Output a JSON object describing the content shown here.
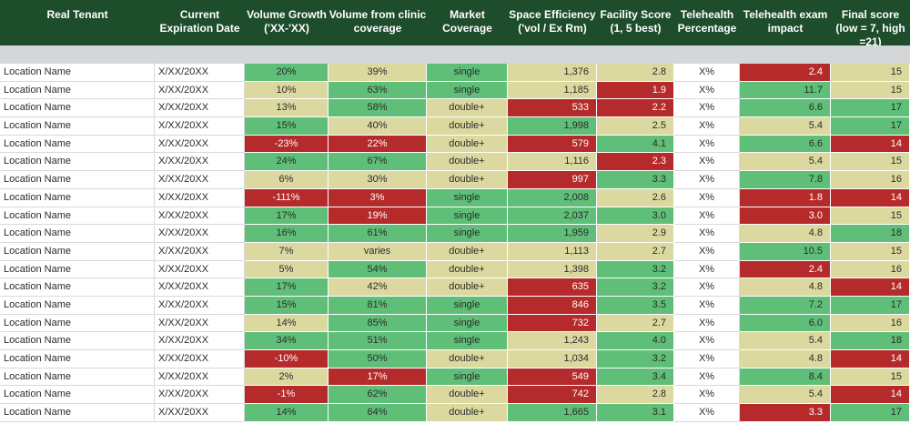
{
  "columns": [
    "Real Tenant",
    "Current Expiration Date",
    "Volume Growth ('XX-'XX)",
    "Volume from clinic coverage",
    "Market Coverage",
    "Space Efficiency ('vol / Ex Rm)",
    "Facility Score (1, 5 best)",
    "Telehealth Percentage",
    "Telehealth exam impact",
    "Final score (low = 7, high =21)"
  ],
  "colors": {
    "header_bg": "#1e4d2b",
    "band": "#d4d6d8",
    "good": "#5fbf78",
    "neutral": "#dcd9a0",
    "bad": "#b52a2a"
  },
  "rows": [
    {
      "loc": "Location Name",
      "exp": "X/XX/20XX",
      "vg": "20%",
      "vg_c": "g",
      "vc": "39%",
      "vc_c": "y",
      "mc": "single",
      "mc_c": "g",
      "se": "1,376",
      "se_c": "y",
      "fs": "2.8",
      "fs_c": "y",
      "tp": "X%",
      "ti": "2.4",
      "ti_c": "r",
      "score": "15",
      "score_c": "y"
    },
    {
      "loc": "Location Name",
      "exp": "X/XX/20XX",
      "vg": "10%",
      "vg_c": "y",
      "vc": "63%",
      "vc_c": "g",
      "mc": "single",
      "mc_c": "g",
      "se": "1,185",
      "se_c": "y",
      "fs": "1.9",
      "fs_c": "r",
      "tp": "X%",
      "ti": "11.7",
      "ti_c": "g",
      "score": "15",
      "score_c": "y"
    },
    {
      "loc": "Location Name",
      "exp": "X/XX/20XX",
      "vg": "13%",
      "vg_c": "y",
      "vc": "58%",
      "vc_c": "g",
      "mc": "double+",
      "mc_c": "y",
      "se": "533",
      "se_c": "r",
      "fs": "2.2",
      "fs_c": "r",
      "tp": "X%",
      "ti": "6.6",
      "ti_c": "g",
      "score": "17",
      "score_c": "g"
    },
    {
      "loc": "Location Name",
      "exp": "X/XX/20XX",
      "vg": "15%",
      "vg_c": "g",
      "vc": "40%",
      "vc_c": "y",
      "mc": "double+",
      "mc_c": "y",
      "se": "1,998",
      "se_c": "g",
      "fs": "2.5",
      "fs_c": "y",
      "tp": "X%",
      "ti": "5.4",
      "ti_c": "y",
      "score": "17",
      "score_c": "g"
    },
    {
      "loc": "Location Name",
      "exp": "X/XX/20XX",
      "vg": "-23%",
      "vg_c": "r",
      "vc": "22%",
      "vc_c": "r",
      "mc": "double+",
      "mc_c": "y",
      "se": "579",
      "se_c": "r",
      "fs": "4.1",
      "fs_c": "g",
      "tp": "X%",
      "ti": "6.6",
      "ti_c": "g",
      "score": "14",
      "score_c": "r"
    },
    {
      "loc": "Location Name",
      "exp": "X/XX/20XX",
      "vg": "24%",
      "vg_c": "g",
      "vc": "67%",
      "vc_c": "g",
      "mc": "double+",
      "mc_c": "y",
      "se": "1,116",
      "se_c": "y",
      "fs": "2.3",
      "fs_c": "r",
      "tp": "X%",
      "ti": "5.4",
      "ti_c": "y",
      "score": "15",
      "score_c": "y"
    },
    {
      "loc": "Location Name",
      "exp": "X/XX/20XX",
      "vg": "6%",
      "vg_c": "y",
      "vc": "30%",
      "vc_c": "y",
      "mc": "double+",
      "mc_c": "y",
      "se": "997",
      "se_c": "r",
      "fs": "3.3",
      "fs_c": "g",
      "tp": "X%",
      "ti": "7.8",
      "ti_c": "g",
      "score": "16",
      "score_c": "y"
    },
    {
      "loc": "Location Name",
      "exp": "X/XX/20XX",
      "vg": "-111%",
      "vg_c": "r",
      "vc": "3%",
      "vc_c": "r",
      "mc": "single",
      "mc_c": "g",
      "se": "2,008",
      "se_c": "g",
      "fs": "2.6",
      "fs_c": "y",
      "tp": "X%",
      "ti": "1.8",
      "ti_c": "r",
      "score": "14",
      "score_c": "r"
    },
    {
      "loc": "Location Name",
      "exp": "X/XX/20XX",
      "vg": "17%",
      "vg_c": "g",
      "vc": "19%",
      "vc_c": "r",
      "mc": "single",
      "mc_c": "g",
      "se": "2,037",
      "se_c": "g",
      "fs": "3.0",
      "fs_c": "g",
      "tp": "X%",
      "ti": "3.0",
      "ti_c": "r",
      "score": "15",
      "score_c": "y"
    },
    {
      "loc": "Location Name",
      "exp": "X/XX/20XX",
      "vg": "16%",
      "vg_c": "g",
      "vc": "61%",
      "vc_c": "g",
      "mc": "single",
      "mc_c": "g",
      "se": "1,959",
      "se_c": "g",
      "fs": "2.9",
      "fs_c": "y",
      "tp": "X%",
      "ti": "4.8",
      "ti_c": "y",
      "score": "18",
      "score_c": "g"
    },
    {
      "loc": "Location Name",
      "exp": "X/XX/20XX",
      "vg": "7%",
      "vg_c": "y",
      "vc": "varies",
      "vc_c": "y",
      "mc": "double+",
      "mc_c": "y",
      "se": "1,113",
      "se_c": "y",
      "fs": "2.7",
      "fs_c": "y",
      "tp": "X%",
      "ti": "10.5",
      "ti_c": "g",
      "score": "15",
      "score_c": "y"
    },
    {
      "loc": "Location Name",
      "exp": "X/XX/20XX",
      "vg": "5%",
      "vg_c": "y",
      "vc": "54%",
      "vc_c": "g",
      "mc": "double+",
      "mc_c": "y",
      "se": "1,398",
      "se_c": "y",
      "fs": "3.2",
      "fs_c": "g",
      "tp": "X%",
      "ti": "2.4",
      "ti_c": "r",
      "score": "16",
      "score_c": "y"
    },
    {
      "loc": "Location Name",
      "exp": "X/XX/20XX",
      "vg": "17%",
      "vg_c": "g",
      "vc": "42%",
      "vc_c": "y",
      "mc": "double+",
      "mc_c": "y",
      "se": "635",
      "se_c": "r",
      "fs": "3.2",
      "fs_c": "g",
      "tp": "X%",
      "ti": "4.8",
      "ti_c": "y",
      "score": "14",
      "score_c": "r"
    },
    {
      "loc": "Location Name",
      "exp": "X/XX/20XX",
      "vg": "15%",
      "vg_c": "g",
      "vc": "81%",
      "vc_c": "g",
      "mc": "single",
      "mc_c": "g",
      "se": "846",
      "se_c": "r",
      "fs": "3.5",
      "fs_c": "g",
      "tp": "X%",
      "ti": "7.2",
      "ti_c": "g",
      "score": "17",
      "score_c": "g"
    },
    {
      "loc": "Location Name",
      "exp": "X/XX/20XX",
      "vg": "14%",
      "vg_c": "y",
      "vc": "85%",
      "vc_c": "g",
      "mc": "single",
      "mc_c": "g",
      "se": "732",
      "se_c": "r",
      "fs": "2.7",
      "fs_c": "y",
      "tp": "X%",
      "ti": "6.0",
      "ti_c": "g",
      "score": "16",
      "score_c": "y"
    },
    {
      "loc": "Location Name",
      "exp": "X/XX/20XX",
      "vg": "34%",
      "vg_c": "g",
      "vc": "51%",
      "vc_c": "g",
      "mc": "single",
      "mc_c": "g",
      "se": "1,243",
      "se_c": "y",
      "fs": "4.0",
      "fs_c": "g",
      "tp": "X%",
      "ti": "5.4",
      "ti_c": "y",
      "score": "18",
      "score_c": "g"
    },
    {
      "loc": "Location Name",
      "exp": "X/XX/20XX",
      "vg": "-10%",
      "vg_c": "r",
      "vc": "50%",
      "vc_c": "g",
      "mc": "double+",
      "mc_c": "y",
      "se": "1,034",
      "se_c": "y",
      "fs": "3.2",
      "fs_c": "g",
      "tp": "X%",
      "ti": "4.8",
      "ti_c": "y",
      "score": "14",
      "score_c": "r"
    },
    {
      "loc": "Location Name",
      "exp": "X/XX/20XX",
      "vg": "2%",
      "vg_c": "y",
      "vc": "17%",
      "vc_c": "r",
      "mc": "single",
      "mc_c": "g",
      "se": "549",
      "se_c": "r",
      "fs": "3.4",
      "fs_c": "g",
      "tp": "X%",
      "ti": "8.4",
      "ti_c": "g",
      "score": "15",
      "score_c": "y"
    },
    {
      "loc": "Location Name",
      "exp": "X/XX/20XX",
      "vg": "-1%",
      "vg_c": "r",
      "vc": "62%",
      "vc_c": "g",
      "mc": "double+",
      "mc_c": "y",
      "se": "742",
      "se_c": "r",
      "fs": "2.8",
      "fs_c": "y",
      "tp": "X%",
      "ti": "5.4",
      "ti_c": "y",
      "score": "14",
      "score_c": "r"
    },
    {
      "loc": "Location Name",
      "exp": "X/XX/20XX",
      "vg": "14%",
      "vg_c": "g",
      "vc": "64%",
      "vc_c": "g",
      "mc": "double+",
      "mc_c": "y",
      "se": "1,665",
      "se_c": "g",
      "fs": "3.1",
      "fs_c": "g",
      "tp": "X%",
      "ti": "3.3",
      "ti_c": "r",
      "score": "17",
      "score_c": "g"
    }
  ]
}
